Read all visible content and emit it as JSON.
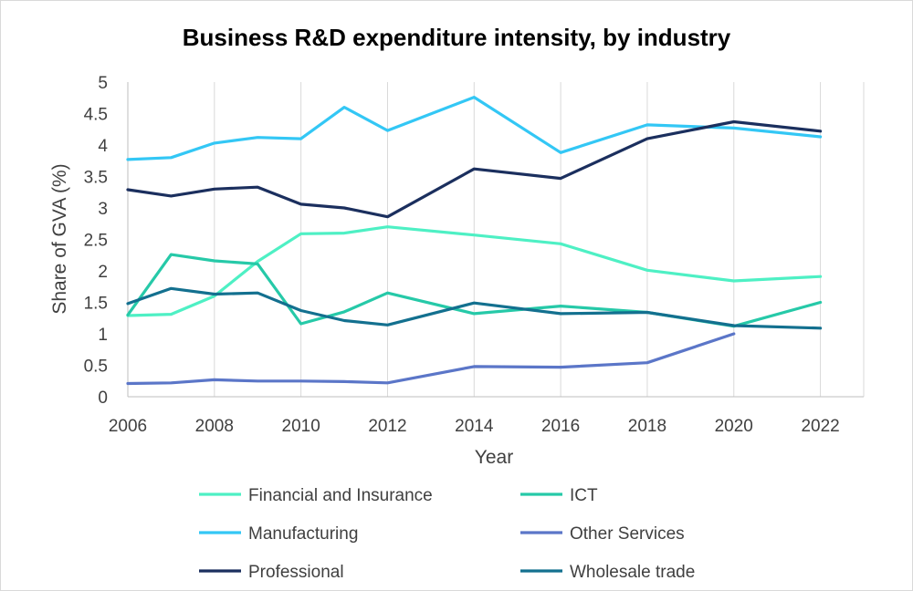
{
  "chart_data": {
    "type": "line",
    "title": "Business R&D expenditure intensity, by industry",
    "xlabel": "Year",
    "ylabel": "Share of GVA (%)",
    "xlim": [
      2006,
      2023
    ],
    "ylim": [
      0,
      5
    ],
    "x_ticks": [
      2006,
      2008,
      2010,
      2012,
      2014,
      2016,
      2018,
      2020,
      2022
    ],
    "x_tick_labels": [
      "2006",
      "2008",
      "2010",
      "2012",
      "2014",
      "2016",
      "2018",
      "2020",
      "2022"
    ],
    "y_ticks": [
      0,
      0.5,
      1,
      1.5,
      2,
      2.5,
      3,
      3.5,
      4,
      4.5,
      5
    ],
    "y_tick_labels": [
      "0",
      "0.5",
      "1",
      "1.5",
      "2",
      "2.5",
      "3",
      "3.5",
      "4",
      "4.5",
      "5"
    ],
    "grid": "vertical",
    "legend_position": "bottom",
    "series": [
      {
        "name": "Financial and Insurance",
        "color": "#4EF0C4",
        "points": [
          [
            2006,
            1.29
          ],
          [
            2007,
            1.31
          ],
          [
            2008,
            1.6
          ],
          [
            2009,
            2.15
          ],
          [
            2010,
            2.59
          ],
          [
            2011,
            2.6
          ],
          [
            2012,
            2.7
          ],
          [
            2014,
            2.57
          ],
          [
            2016,
            2.43
          ],
          [
            2018,
            2.01
          ],
          [
            2020,
            1.84
          ],
          [
            2022,
            1.91
          ]
        ]
      },
      {
        "name": "ICT",
        "color": "#26C9A8",
        "points": [
          [
            2006,
            1.3
          ],
          [
            2007,
            2.26
          ],
          [
            2008,
            2.16
          ],
          [
            2009,
            2.11
          ],
          [
            2010,
            1.16
          ],
          [
            2011,
            1.35
          ],
          [
            2012,
            1.65
          ],
          [
            2014,
            1.32
          ],
          [
            2016,
            1.44
          ],
          [
            2018,
            1.34
          ],
          [
            2020,
            1.12
          ],
          [
            2022,
            1.5
          ]
        ]
      },
      {
        "name": "Manufacturing",
        "color": "#33C7F5",
        "points": [
          [
            2006,
            3.77
          ],
          [
            2007,
            3.8
          ],
          [
            2008,
            4.03
          ],
          [
            2009,
            4.12
          ],
          [
            2010,
            4.1
          ],
          [
            2011,
            4.6
          ],
          [
            2012,
            4.23
          ],
          [
            2014,
            4.76
          ],
          [
            2016,
            3.88
          ],
          [
            2018,
            4.32
          ],
          [
            2020,
            4.27
          ],
          [
            2022,
            4.13
          ]
        ]
      },
      {
        "name": "Other Services",
        "color": "#5B76C8",
        "points": [
          [
            2006,
            0.21
          ],
          [
            2007,
            0.22
          ],
          [
            2008,
            0.27
          ],
          [
            2009,
            0.25
          ],
          [
            2010,
            0.25
          ],
          [
            2011,
            0.24
          ],
          [
            2012,
            0.22
          ],
          [
            2014,
            0.48
          ],
          [
            2016,
            0.47
          ],
          [
            2018,
            0.54
          ],
          [
            2020,
            1.0
          ]
        ]
      },
      {
        "name": "Professional",
        "color": "#1B2F5E",
        "points": [
          [
            2006,
            3.29
          ],
          [
            2007,
            3.19
          ],
          [
            2008,
            3.3
          ],
          [
            2009,
            3.33
          ],
          [
            2010,
            3.06
          ],
          [
            2011,
            3.0
          ],
          [
            2012,
            2.86
          ],
          [
            2014,
            3.62
          ],
          [
            2016,
            3.47
          ],
          [
            2018,
            4.1
          ],
          [
            2020,
            4.37
          ],
          [
            2022,
            4.22
          ]
        ]
      },
      {
        "name": "Wholesale trade",
        "color": "#13708F",
        "points": [
          [
            2006,
            1.48
          ],
          [
            2007,
            1.72
          ],
          [
            2008,
            1.63
          ],
          [
            2009,
            1.65
          ],
          [
            2010,
            1.37
          ],
          [
            2011,
            1.21
          ],
          [
            2012,
            1.14
          ],
          [
            2014,
            1.49
          ],
          [
            2016,
            1.32
          ],
          [
            2018,
            1.34
          ],
          [
            2020,
            1.13
          ],
          [
            2022,
            1.09
          ]
        ]
      }
    ]
  }
}
